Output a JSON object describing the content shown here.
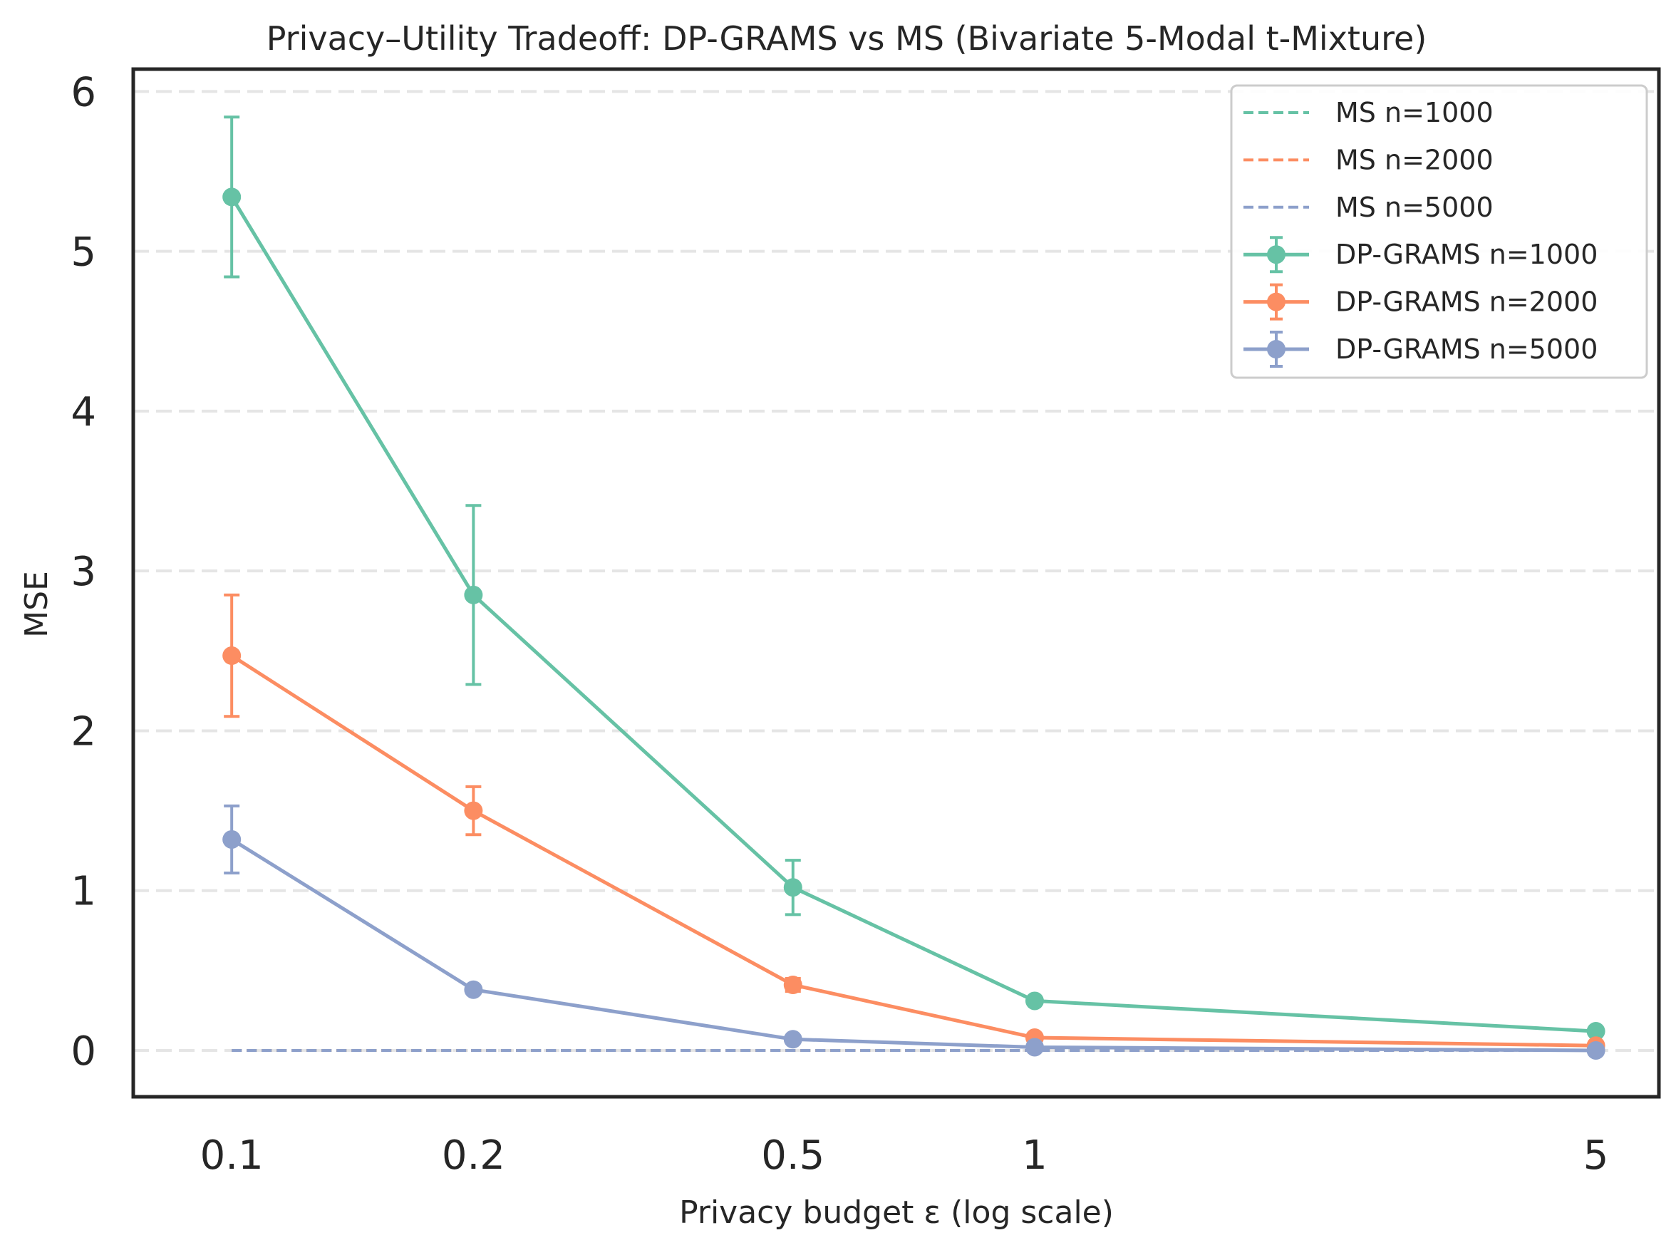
{
  "chart_data": {
    "type": "line",
    "title": "Privacy–Utility Tradeoff: DP-GRAMS vs MS (Bivariate 5-Modal t-Mixture)",
    "xlabel": "Privacy budget ε (log scale)",
    "ylabel": "MSE",
    "xscale": "log",
    "x": [
      0.1,
      0.2,
      0.5,
      1,
      5
    ],
    "x_tick_labels": [
      "0.1",
      "0.2",
      "0.5",
      "1",
      "5"
    ],
    "xlim": [
      0.0754,
      5.99
    ],
    "ylim": [
      -0.29,
      6.14
    ],
    "y_ticks": [
      0,
      1,
      2,
      3,
      4,
      5,
      6
    ],
    "y_tick_labels": [
      "0",
      "1",
      "2",
      "3",
      "4",
      "5",
      "6"
    ],
    "grid": "horizontal dashed",
    "legend_position": "upper right",
    "series": [
      {
        "name": "MS n=1000",
        "style": "dashed",
        "color": "#66c2a5",
        "values": [
          0.0,
          0.0,
          0.0,
          0.0,
          0.0
        ]
      },
      {
        "name": "MS n=2000",
        "style": "dashed",
        "color": "#fc8d62",
        "values": [
          0.0,
          0.0,
          0.0,
          0.0,
          0.0
        ]
      },
      {
        "name": "MS n=5000",
        "style": "dashed",
        "color": "#8da0cb",
        "values": [
          0.0,
          0.0,
          0.0,
          0.0,
          0.0
        ]
      },
      {
        "name": "DP-GRAMS n=1000",
        "style": "solid-errorbar",
        "color": "#66c2a5",
        "values": [
          5.34,
          2.85,
          1.02,
          0.31,
          0.12
        ],
        "errors": [
          0.5,
          0.56,
          0.17,
          0.02,
          0.02
        ]
      },
      {
        "name": "DP-GRAMS n=2000",
        "style": "solid-errorbar",
        "color": "#fc8d62",
        "values": [
          2.47,
          1.5,
          0.41,
          0.08,
          0.03
        ],
        "errors": [
          0.38,
          0.15,
          0.04,
          0.01,
          0.01
        ]
      },
      {
        "name": "DP-GRAMS n=5000",
        "style": "solid-errorbar",
        "color": "#8da0cb",
        "values": [
          1.32,
          0.38,
          0.07,
          0.02,
          0.0
        ],
        "errors": [
          0.21,
          0.02,
          0.01,
          0.005,
          0.005
        ]
      }
    ]
  }
}
